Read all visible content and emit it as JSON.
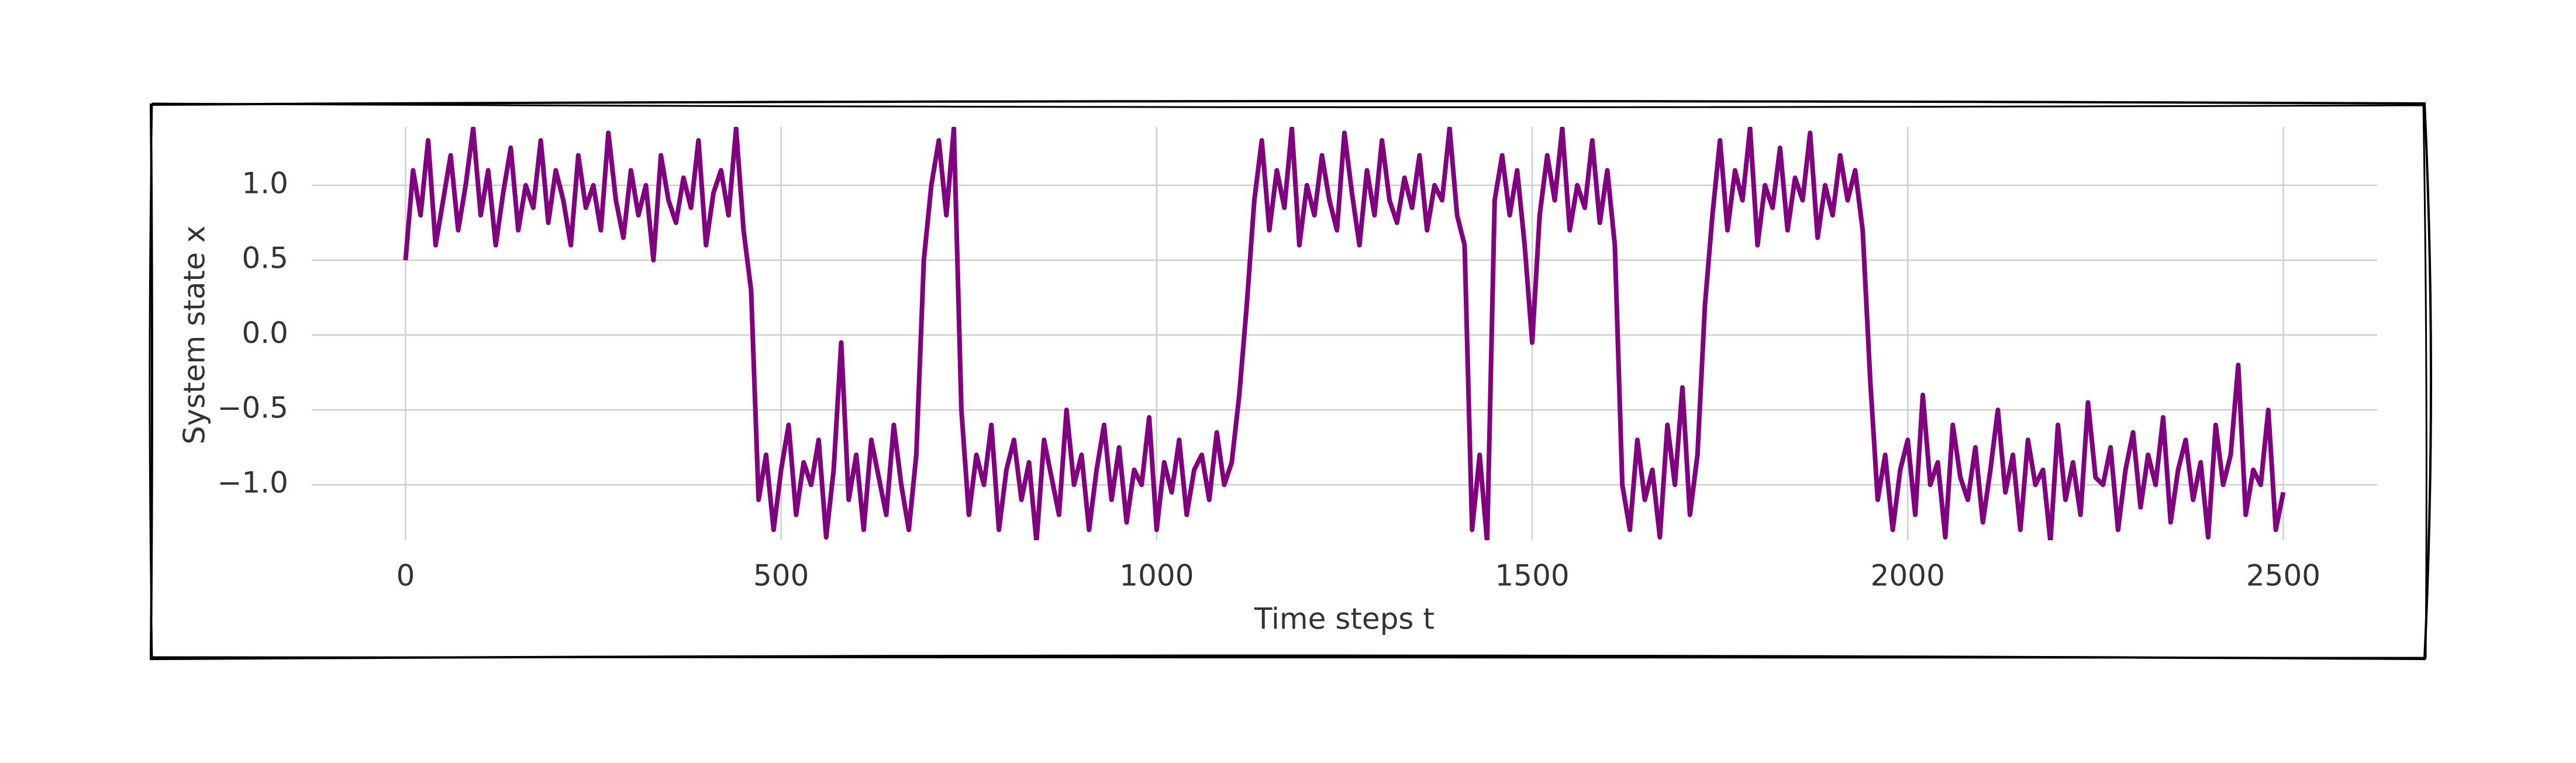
{
  "chart_data": {
    "type": "line",
    "xlabel": "Time steps t",
    "ylabel": "System state x",
    "color": "#800080",
    "grid": true,
    "xlim": [
      -125,
      2625
    ],
    "ylim": [
      -1.37,
      1.39
    ],
    "xticks": [
      0,
      500,
      1000,
      1500,
      2000,
      2500
    ],
    "yticks": [
      {
        "value": -1.0,
        "label": "−1.0"
      },
      {
        "value": -0.5,
        "label": "−0.5"
      },
      {
        "value": 0.0,
        "label": "0.0"
      },
      {
        "value": 0.5,
        "label": "0.5"
      },
      {
        "value": 1.0,
        "label": "1.0"
      }
    ],
    "x": [
      0,
      10,
      20,
      30,
      40,
      50,
      60,
      70,
      80,
      90,
      100,
      110,
      120,
      130,
      140,
      150,
      160,
      170,
      180,
      190,
      200,
      210,
      220,
      230,
      240,
      250,
      260,
      270,
      280,
      290,
      300,
      310,
      320,
      330,
      340,
      350,
      360,
      370,
      380,
      390,
      400,
      410,
      420,
      430,
      440,
      450,
      460,
      470,
      480,
      490,
      500,
      510,
      520,
      530,
      540,
      550,
      560,
      570,
      580,
      590,
      600,
      610,
      620,
      630,
      640,
      650,
      660,
      670,
      680,
      690,
      700,
      710,
      720,
      730,
      740,
      750,
      760,
      770,
      780,
      790,
      800,
      810,
      820,
      830,
      840,
      850,
      860,
      870,
      880,
      890,
      900,
      910,
      920,
      930,
      940,
      950,
      960,
      970,
      980,
      990,
      1000,
      1010,
      1020,
      1030,
      1040,
      1050,
      1060,
      1070,
      1080,
      1090,
      1100,
      1110,
      1120,
      1130,
      1140,
      1150,
      1160,
      1170,
      1180,
      1190,
      1200,
      1210,
      1220,
      1230,
      1240,
      1250,
      1260,
      1270,
      1280,
      1290,
      1300,
      1310,
      1320,
      1330,
      1340,
      1350,
      1360,
      1370,
      1380,
      1390,
      1400,
      1410,
      1420,
      1430,
      1440,
      1450,
      1460,
      1470,
      1480,
      1490,
      1500,
      1510,
      1520,
      1530,
      1540,
      1550,
      1560,
      1570,
      1580,
      1590,
      1600,
      1610,
      1620,
      1630,
      1640,
      1650,
      1660,
      1670,
      1680,
      1690,
      1700,
      1710,
      1720,
      1730,
      1740,
      1750,
      1760,
      1770,
      1780,
      1790,
      1800,
      1810,
      1820,
      1830,
      1840,
      1850,
      1860,
      1870,
      1880,
      1890,
      1900,
      1910,
      1920,
      1930,
      1940,
      1950,
      1960,
      1970,
      1980,
      1990,
      2000,
      2010,
      2020,
      2030,
      2040,
      2050,
      2060,
      2070,
      2080,
      2090,
      2100,
      2110,
      2120,
      2130,
      2140,
      2150,
      2160,
      2170,
      2180,
      2190,
      2200,
      2210,
      2220,
      2230,
      2240,
      2250,
      2260,
      2270,
      2280,
      2290,
      2300,
      2310,
      2320,
      2330,
      2340,
      2350,
      2360,
      2370,
      2380,
      2390,
      2400,
      2410,
      2420,
      2430,
      2440,
      2450,
      2460,
      2470,
      2480,
      2490,
      2500
    ],
    "values": [
      0.5,
      1.1,
      0.8,
      1.3,
      0.6,
      0.9,
      1.2,
      0.7,
      1.0,
      1.38,
      0.8,
      1.1,
      0.6,
      0.95,
      1.25,
      0.7,
      1.0,
      0.85,
      1.3,
      0.75,
      1.1,
      0.9,
      0.6,
      1.2,
      0.85,
      1.0,
      0.7,
      1.35,
      0.9,
      0.65,
      1.1,
      0.8,
      1.0,
      0.5,
      1.2,
      0.9,
      0.75,
      1.05,
      0.85,
      1.3,
      0.6,
      0.95,
      1.1,
      0.8,
      1.38,
      0.7,
      0.3,
      -1.1,
      -0.8,
      -1.3,
      -0.9,
      -0.6,
      -1.2,
      -0.85,
      -1.0,
      -0.7,
      -1.35,
      -0.9,
      -0.05,
      -1.1,
      -0.8,
      -1.3,
      -0.7,
      -0.95,
      -1.2,
      -0.6,
      -1.0,
      -1.3,
      -0.8,
      0.5,
      1.0,
      1.3,
      0.8,
      1.38,
      -0.5,
      -1.2,
      -0.8,
      -1.0,
      -0.6,
      -1.3,
      -0.9,
      -0.7,
      -1.1,
      -0.85,
      -1.38,
      -0.7,
      -0.95,
      -1.2,
      -0.5,
      -1.0,
      -0.8,
      -1.3,
      -0.9,
      -0.6,
      -1.1,
      -0.75,
      -1.25,
      -0.9,
      -1.0,
      -0.55,
      -1.3,
      -0.85,
      -1.05,
      -0.7,
      -1.2,
      -0.9,
      -0.8,
      -1.1,
      -0.65,
      -1.0,
      -0.85,
      -0.4,
      0.2,
      0.9,
      1.3,
      0.7,
      1.1,
      0.85,
      1.38,
      0.6,
      1.0,
      0.8,
      1.2,
      0.9,
      0.7,
      1.35,
      0.95,
      0.6,
      1.1,
      0.8,
      1.3,
      0.9,
      0.75,
      1.05,
      0.85,
      1.2,
      0.7,
      1.0,
      0.9,
      1.38,
      0.8,
      0.6,
      -1.3,
      -0.8,
      -1.38,
      0.9,
      1.2,
      0.8,
      1.1,
      0.6,
      -0.05,
      0.8,
      1.2,
      0.9,
      1.38,
      0.7,
      1.0,
      0.85,
      1.3,
      0.75,
      1.1,
      0.6,
      -1.0,
      -1.3,
      -0.7,
      -1.1,
      -0.9,
      -1.35,
      -0.6,
      -1.0,
      -0.35,
      -1.2,
      -0.8,
      0.2,
      0.8,
      1.3,
      0.7,
      1.1,
      0.9,
      1.38,
      0.6,
      1.0,
      0.85,
      1.25,
      0.7,
      1.05,
      0.9,
      1.35,
      0.65,
      1.0,
      0.8,
      1.2,
      0.9,
      1.1,
      0.7,
      -0.3,
      -1.1,
      -0.8,
      -1.3,
      -0.9,
      -0.7,
      -1.2,
      -0.4,
      -1.0,
      -0.85,
      -1.35,
      -0.6,
      -0.95,
      -1.1,
      -0.75,
      -1.25,
      -0.9,
      -0.5,
      -1.05,
      -0.8,
      -1.3,
      -0.7,
      -1.0,
      -0.9,
      -1.38,
      -0.6,
      -1.1,
      -0.85,
      -1.2,
      -0.45,
      -0.95,
      -1.0,
      -0.75,
      -1.3,
      -0.9,
      -0.65,
      -1.15,
      -0.8,
      -1.0,
      -0.55,
      -1.25,
      -0.9,
      -0.7,
      -1.1,
      -0.85,
      -1.35,
      -0.6,
      -1.0,
      -0.8,
      -0.2,
      -1.2,
      -0.9,
      -1.0,
      -0.5,
      -1.3,
      -1.05
    ]
  }
}
